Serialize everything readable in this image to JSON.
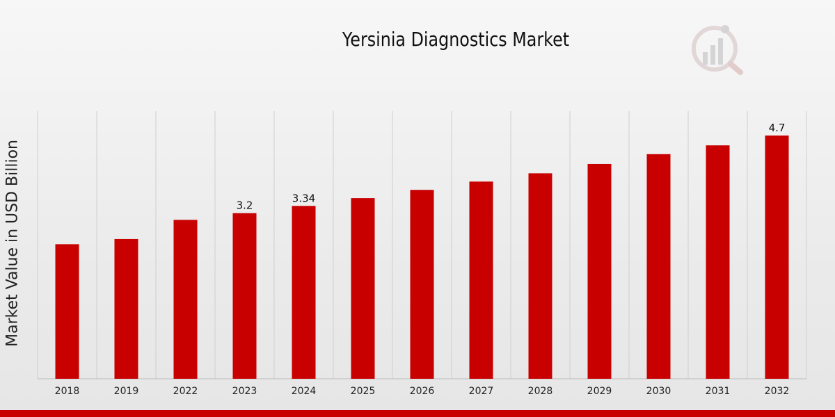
{
  "chart_data": {
    "type": "bar",
    "title": "Yersinia Diagnostics Market",
    "ylabel": "Market Value in USD Billion",
    "xlabel": "",
    "categories": [
      "2018",
      "2019",
      "2022",
      "2023",
      "2024",
      "2025",
      "2026",
      "2027",
      "2028",
      "2029",
      "2030",
      "2031",
      "2032"
    ],
    "values": [
      2.6,
      2.7,
      3.07,
      3.2,
      3.34,
      3.49,
      3.65,
      3.81,
      3.97,
      4.15,
      4.34,
      4.51,
      4.7
    ],
    "data_labels": {
      "2023": "3.2",
      "2024": "3.34",
      "2032": "4.7"
    },
    "ylim": [
      0,
      5.17
    ],
    "grid": "vertical lines between categories",
    "bar_color": "#c80000",
    "legend": "none"
  }
}
